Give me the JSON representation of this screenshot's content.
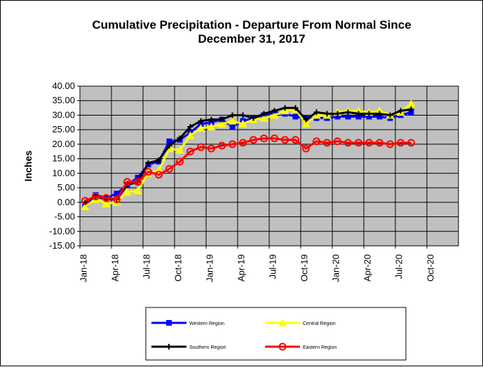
{
  "chart_data": {
    "type": "line",
    "title": "Cumulative Precipitation - Departure From Normal Since",
    "subtitle": "December 31, 2017",
    "xlabel": "",
    "ylabel": "Inches",
    "ylim": [
      -15,
      40
    ],
    "yticks": [
      "40.00",
      "35.00",
      "30.00",
      "25.00",
      "20.00",
      "15.00",
      "10.00",
      "5.00",
      "0.00",
      "-5.00",
      "-10.00",
      "-15.00"
    ],
    "ytick_values": [
      40,
      35,
      30,
      25,
      20,
      15,
      10,
      5,
      0,
      -5,
      -10,
      -15
    ],
    "categories": [
      "Jan-18",
      "Apr-18",
      "Jul-18",
      "Oct-18",
      "Jan-19",
      "Apr-19",
      "Jul-19",
      "Oct-19",
      "Jan-20",
      "Apr-20",
      "Jul-20",
      "Oct-20"
    ],
    "x_months_total": 36,
    "grid": true,
    "legend_position": "bottom",
    "plot_background": "#c0c0c0",
    "series": [
      {
        "name": "Western Region",
        "color": "#0000ff",
        "marker": "square",
        "x": [
          0,
          1,
          2,
          3,
          4,
          5,
          6,
          7,
          8,
          9,
          10,
          11,
          12,
          13,
          14,
          15,
          16,
          17,
          18,
          19,
          20,
          21,
          22,
          23,
          24,
          25,
          26,
          27,
          28,
          29,
          30,
          31
        ],
        "values": [
          -1.0,
          2.5,
          1.5,
          3.0,
          6.0,
          8.5,
          13.0,
          14.0,
          21.0,
          21.5,
          24.0,
          27.0,
          27.5,
          28.5,
          26.0,
          28.0,
          29.0,
          30.0,
          31.0,
          30.5,
          29.5,
          29.0,
          29.0,
          29.0,
          29.5,
          29.5,
          29.5,
          29.5,
          29.5,
          29.0,
          30.0,
          31.0
        ]
      },
      {
        "name": "Central Region",
        "color": "#ffff00",
        "marker": "triangle",
        "x": [
          0,
          1,
          2,
          3,
          4,
          5,
          6,
          7,
          8,
          9,
          10,
          11,
          12,
          13,
          14,
          15,
          16,
          17,
          18,
          19,
          20,
          21,
          22,
          23,
          24,
          25,
          26,
          27,
          28,
          29,
          30,
          31
        ],
        "values": [
          -1.5,
          1.0,
          -0.5,
          0.0,
          3.5,
          4.0,
          10.0,
          11.0,
          18.5,
          18.0,
          23.0,
          25.5,
          26.0,
          27.0,
          28.0,
          27.0,
          28.5,
          29.0,
          30.0,
          31.5,
          32.0,
          27.0,
          30.0,
          30.0,
          31.0,
          31.5,
          31.5,
          31.0,
          31.5,
          30.0,
          31.0,
          34.0
        ]
      },
      {
        "name": "Southern Region",
        "color": "#000000",
        "marker": "plus",
        "x": [
          0,
          1,
          2,
          3,
          4,
          5,
          6,
          7,
          8,
          9,
          10,
          11,
          12,
          13,
          14,
          15,
          16,
          17,
          18,
          19,
          20,
          21,
          22,
          23,
          24,
          25,
          26,
          27,
          28,
          29,
          30,
          31
        ],
        "values": [
          0.0,
          2.0,
          1.0,
          1.0,
          6.0,
          7.0,
          13.5,
          14.5,
          19.5,
          22.0,
          26.0,
          28.0,
          28.5,
          28.5,
          30.0,
          30.0,
          29.0,
          30.5,
          31.5,
          32.5,
          32.5,
          28.5,
          31.0,
          30.5,
          30.5,
          31.0,
          30.5,
          30.5,
          30.5,
          30.0,
          31.5,
          32.0
        ]
      },
      {
        "name": "Eastern Region",
        "color": "#ff0000",
        "marker": "circle",
        "x": [
          0,
          1,
          2,
          3,
          4,
          5,
          6,
          7,
          8,
          9,
          10,
          11,
          12,
          13,
          14,
          15,
          16,
          17,
          18,
          19,
          20,
          21,
          22,
          23,
          24,
          25,
          26,
          27,
          28,
          29,
          30,
          31
        ],
        "values": [
          0.5,
          2.0,
          1.5,
          1.0,
          7.0,
          7.0,
          10.5,
          9.5,
          11.5,
          14.0,
          17.5,
          19.0,
          18.5,
          19.5,
          20.0,
          20.5,
          21.5,
          22.0,
          22.0,
          21.5,
          21.5,
          18.5,
          21.0,
          20.5,
          21.0,
          20.5,
          20.5,
          20.5,
          20.5,
          20.0,
          20.5,
          20.5
        ]
      }
    ]
  }
}
